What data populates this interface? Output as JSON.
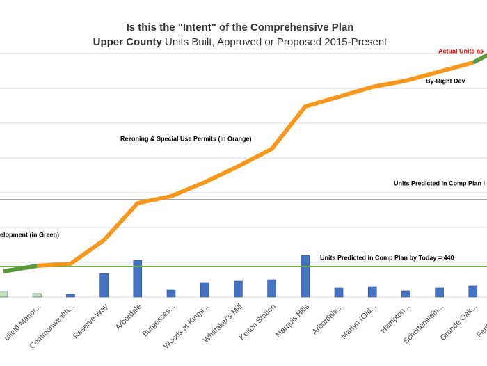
{
  "chart_data": {
    "type": "bar_line",
    "title": "Is this the \"Intent\" of the Comprehensive Plan",
    "subtitle_bold": "Upper County",
    "subtitle": " Units Built, Approved or Proposed 2015-Present",
    "categories": [
      null,
      "ufield Manor...",
      "Commonwealth...",
      "Reserve Way",
      "Arbordale",
      "Burgesses...",
      "Woods at Kings...",
      "Whittaker's Mill",
      "Kelton Station",
      "Marquis Hills",
      "Arbordale...",
      "Marlyn (Old...",
      "Hampton...",
      "Schottenstein...",
      "Grande Oak...",
      "Fenton Mill..."
    ],
    "bars": {
      "values": [
        80,
        50,
        40,
        340,
        530,
        100,
        210,
        230,
        250,
        600,
        130,
        150,
        90,
        130,
        160,
        150
      ],
      "colors": [
        "#c5e0b4",
        "#c5e0b4",
        "#4472c4",
        "#4472c4",
        "#4472c4",
        "#4472c4",
        "#4472c4",
        "#4472c4",
        "#4472c4",
        "#4472c4",
        "#4472c4",
        "#4472c4",
        "#4472c4",
        "#4472c4",
        "#4472c4",
        "#4472c4"
      ]
    },
    "series": [
      {
        "color": "#5b9a3c",
        "values": [
          370,
          450,
          null,
          null,
          null,
          null,
          null,
          null,
          null,
          null,
          null,
          null,
          null,
          null,
          3370,
          3620
        ]
      },
      {
        "color": "#f7981d",
        "values": [
          null,
          450,
          480,
          820,
          1350,
          1450,
          1650,
          1880,
          2130,
          2740,
          2880,
          3020,
          3110,
          3240,
          3370,
          null
        ]
      }
    ],
    "reference_lines": [
      {
        "value": 1400,
        "color": "#a6a6a6",
        "label": "Units Predicted in Comp Plan I"
      },
      {
        "value": 440,
        "color": "#70ad47",
        "label": "Units Predicted in Comp Plan by Today = 440"
      }
    ],
    "annotations": [
      {
        "text": "Actual Units as",
        "color": "#e00000"
      },
      {
        "text": "By-Right Dev",
        "color": "#000000"
      },
      {
        "text": "Rezoning & Special Use Permits (in Orange)",
        "color": "#000000"
      },
      {
        "text": "elopment (in Green)",
        "color": "#000000"
      }
    ],
    "ylim": [
      0,
      4000
    ],
    "yticks": [
      0,
      500,
      1000,
      1500,
      2000,
      2500,
      3000,
      3500
    ],
    "show_ytick_labels": false,
    "grid": true
  }
}
